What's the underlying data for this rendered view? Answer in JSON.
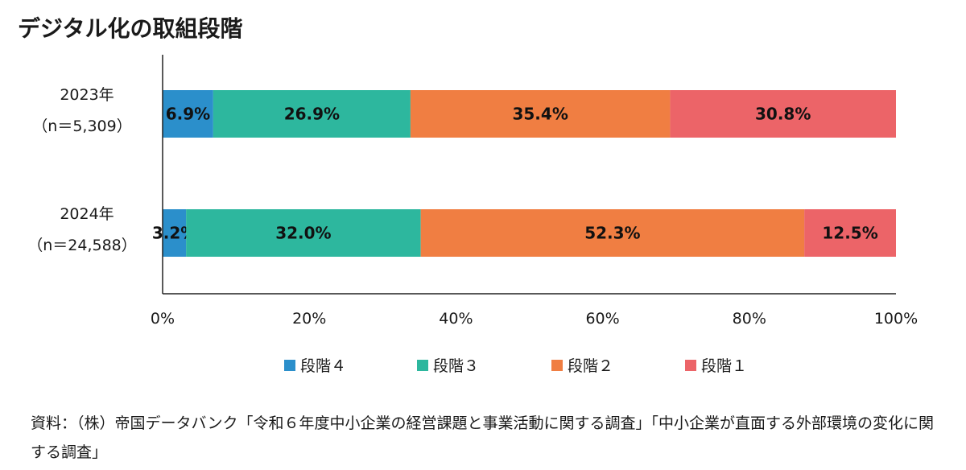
{
  "title": "デジタル化の取組段階",
  "source": "資料：（株）帝国データバンク「令和６年度中小企業の経営課題と事業活動に関する調査」「中小企業が直面する外部環境の変化に関する調査」",
  "colors": {
    "stage4": "#2b8fcb",
    "stage3": "#2db79e",
    "stage2": "#f07e42",
    "stage1": "#ec6468",
    "axis": "#222222"
  },
  "chart_data": {
    "type": "bar",
    "orientation": "horizontal",
    "stacked": true,
    "categories": [
      {
        "line1": "2023年",
        "line2": "（n＝5,309）"
      },
      {
        "line1": "2024年",
        "line2": "（n＝24,588）"
      }
    ],
    "series": [
      {
        "name": "段階４",
        "values": [
          6.9,
          3.2
        ],
        "labels": [
          "6.9%",
          "3.2%"
        ]
      },
      {
        "name": "段階３",
        "values": [
          26.9,
          32.0
        ],
        "labels": [
          "26.9%",
          "32.0%"
        ]
      },
      {
        "name": "段階２",
        "values": [
          35.4,
          52.3
        ],
        "labels": [
          "35.4%",
          "52.3%"
        ]
      },
      {
        "name": "段階１",
        "values": [
          30.8,
          12.5
        ],
        "labels": [
          "30.8%",
          "12.5%"
        ]
      }
    ],
    "xlim": [
      0,
      100
    ],
    "xticks": [
      "0%",
      "20%",
      "40%",
      "60%",
      "80%",
      "100%"
    ],
    "legend_position": "bottom",
    "grid": false
  }
}
